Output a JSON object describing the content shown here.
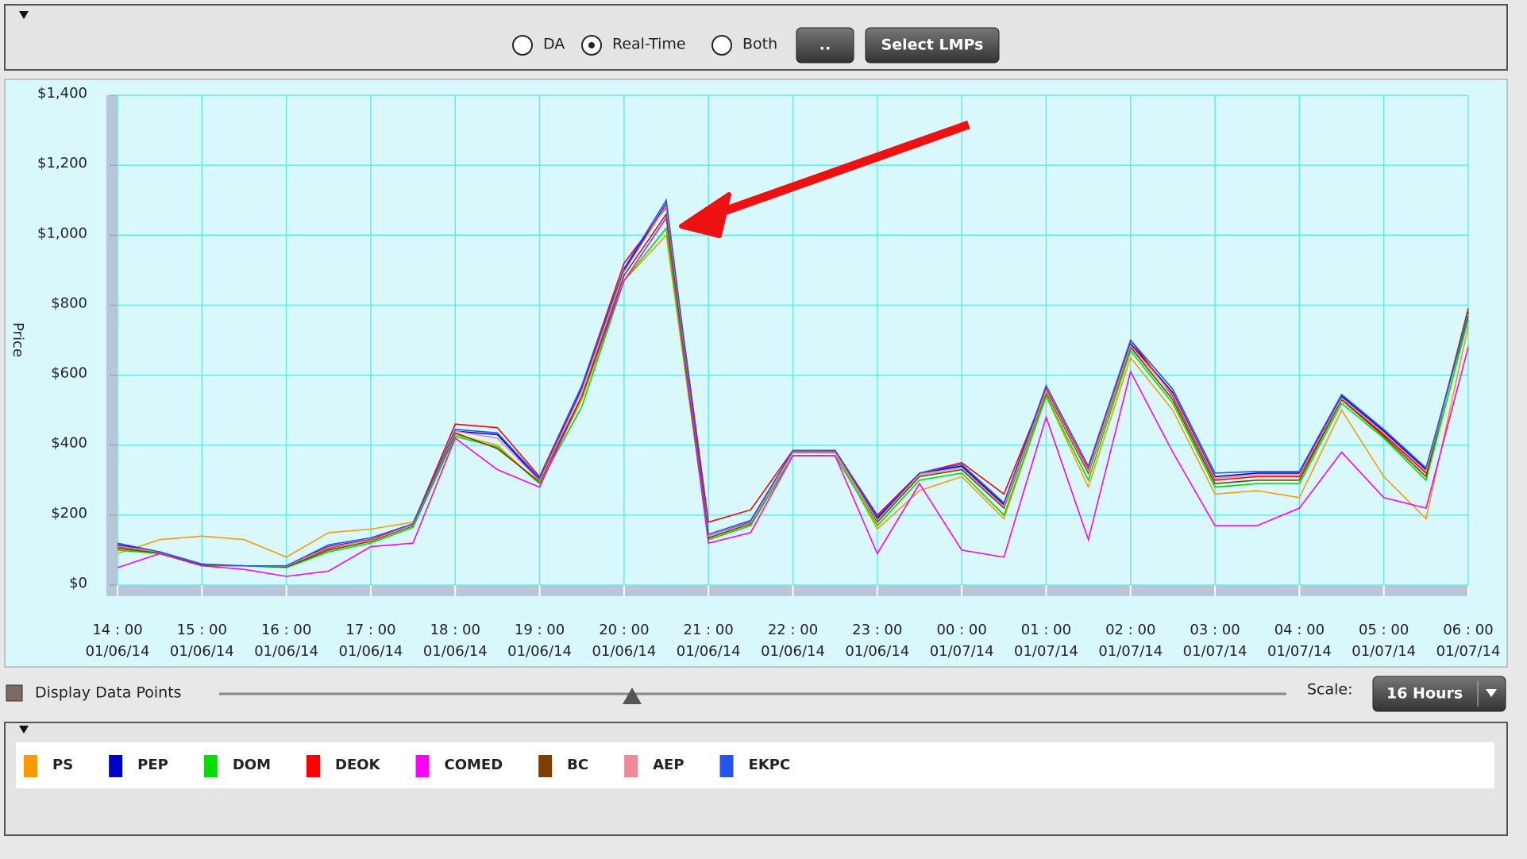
{
  "controls": {
    "modes": [
      "DA",
      "Real-Time",
      "Both"
    ],
    "selected": 1,
    "buttons": [
      "..",
      "Select LMPs"
    ]
  },
  "chart_data": {
    "type": "line",
    "y_label": "Price",
    "categories": [
      "14 : 00",
      null,
      "15 : 00",
      null,
      "16 : 00",
      null,
      "17 : 00",
      null,
      "18 : 00",
      null,
      "19 : 00",
      null,
      "20 : 00",
      null,
      "21 : 00",
      null,
      "22 : 00",
      null,
      "23 : 00",
      null,
      "00 : 00",
      null,
      "01 : 00",
      null,
      "02 : 00",
      null,
      "03 : 00",
      null,
      "04 : 00",
      null,
      "05 : 00",
      null,
      "06 : 00"
    ],
    "dates": [
      "01/06/14",
      null,
      "01/06/14",
      null,
      "01/06/14",
      null,
      "01/06/14",
      null,
      "01/06/14",
      null,
      "01/06/14",
      null,
      "01/06/14",
      null,
      "01/06/14",
      null,
      "01/06/14",
      null,
      "01/06/14",
      null,
      "01/07/14",
      null,
      "01/07/14",
      null,
      "01/07/14",
      null,
      "01/07/14",
      null,
      "01/07/14",
      null,
      "01/07/14",
      null,
      "01/07/14"
    ],
    "ylim": [
      0,
      1400
    ],
    "yticks": [
      {
        "value": 0,
        "label": "$0"
      },
      {
        "value": 200,
        "label": "$200"
      },
      {
        "value": 400,
        "label": "$400"
      },
      {
        "value": 600,
        "label": "$600"
      },
      {
        "value": 800,
        "label": "$800"
      },
      {
        "value": 1000,
        "label": "$1,000"
      },
      {
        "value": 1200,
        "label": "$1,200"
      },
      {
        "value": 1400,
        "label": "$1,400"
      }
    ],
    "grid": true,
    "series": [
      {
        "name": "PS",
        "color": "#ff9900",
        "values": [
          90,
          130,
          140,
          130,
          80,
          150,
          160,
          180,
          430,
          400,
          290,
          530,
          870,
          1000,
          130,
          170,
          380,
          380,
          160,
          270,
          310,
          190,
          540,
          280,
          650,
          500,
          260,
          270,
          250,
          500,
          310,
          190,
          740
        ]
      },
      {
        "name": "PEP",
        "color": "#0000cc",
        "values": [
          115,
          95,
          60,
          55,
          55,
          110,
          130,
          175,
          440,
          430,
          300,
          560,
          900,
          1090,
          140,
          180,
          380,
          380,
          190,
          320,
          340,
          230,
          560,
          330,
          690,
          550,
          310,
          320,
          320,
          540,
          440,
          330,
          780
        ]
      },
      {
        "name": "DOM",
        "color": "#00e000",
        "values": [
          100,
          90,
          55,
          55,
          50,
          95,
          120,
          165,
          425,
          395,
          290,
          510,
          870,
          1020,
          130,
          170,
          370,
          370,
          170,
          300,
          320,
          200,
          540,
          300,
          670,
          520,
          280,
          290,
          290,
          520,
          420,
          300,
          760
        ]
      },
      {
        "name": "DEOK",
        "color": "#ff0000",
        "values": [
          110,
          95,
          60,
          55,
          55,
          105,
          130,
          175,
          460,
          450,
          310,
          570,
          920,
          1080,
          180,
          215,
          385,
          385,
          200,
          320,
          350,
          260,
          560,
          330,
          700,
          540,
          300,
          310,
          310,
          530,
          430,
          320,
          790
        ]
      },
      {
        "name": "COMED",
        "color": "#ff00ff",
        "values": [
          50,
          90,
          55,
          45,
          25,
          40,
          110,
          120,
          420,
          330,
          280,
          540,
          870,
          1050,
          120,
          150,
          370,
          370,
          90,
          290,
          100,
          80,
          480,
          130,
          610,
          380,
          170,
          170,
          220,
          380,
          250,
          220,
          680
        ]
      },
      {
        "name": "BC",
        "color": "#7b3f00",
        "values": [
          105,
          92,
          58,
          55,
          52,
          100,
          125,
          170,
          435,
          390,
          295,
          540,
          885,
          1060,
          135,
          175,
          380,
          380,
          180,
          310,
          330,
          220,
          550,
          320,
          680,
          530,
          290,
          300,
          300,
          530,
          425,
          310,
          790
        ]
      },
      {
        "name": "AEP",
        "color": "#f08898",
        "values": [
          112,
          94,
          60,
          55,
          54,
          108,
          128,
          172,
          440,
          420,
          298,
          555,
          895,
          1085,
          140,
          178,
          378,
          378,
          185,
          315,
          335,
          225,
          555,
          325,
          685,
          545,
          305,
          315,
          315,
          535,
          435,
          325,
          775
        ]
      },
      {
        "name": "EKPC",
        "color": "#2255ee",
        "values": [
          120,
          95,
          60,
          55,
          55,
          115,
          135,
          175,
          445,
          435,
          305,
          570,
          905,
          1100,
          145,
          185,
          385,
          385,
          195,
          320,
          345,
          235,
          570,
          340,
          700,
          560,
          320,
          325,
          325,
          545,
          445,
          335,
          770
        ]
      }
    ]
  },
  "footer": {
    "display_points_label": "Display Data Points",
    "scale_label": "Scale:",
    "scale_value": "16 Hours"
  }
}
